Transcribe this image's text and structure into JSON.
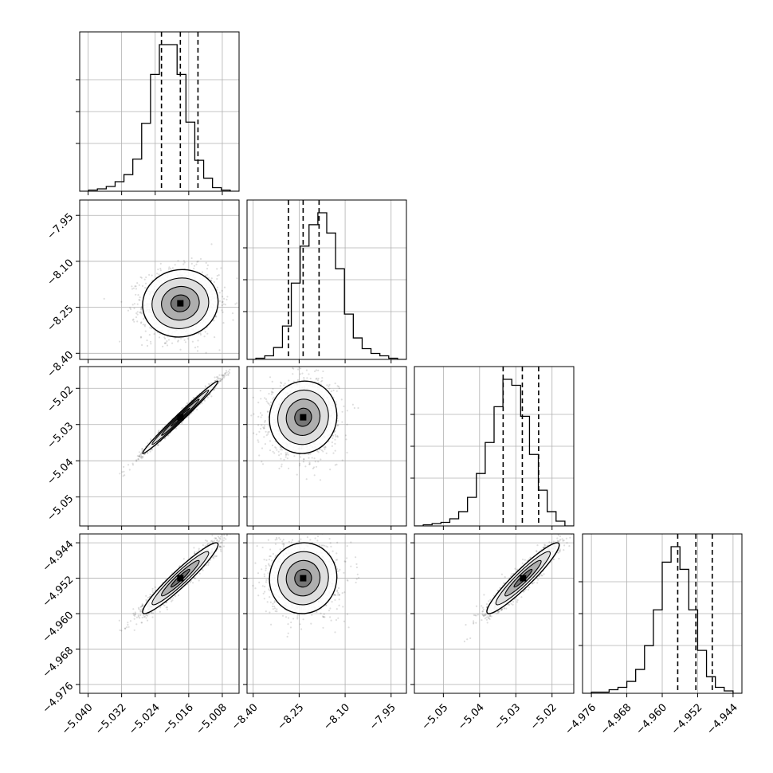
{
  "chart_data": {
    "type": "corner",
    "parameters": [
      {
        "range": [
          -5.042,
          -5.004
        ],
        "ticks": [
          -5.04,
          -5.032,
          -5.024,
          -5.016,
          -5.008
        ],
        "tick_labels": [
          "−5.040",
          "−5.032",
          "−5.024",
          "−5.016",
          "−5.008"
        ],
        "quantiles": [
          -5.0225,
          -5.018,
          -5.0138
        ],
        "hist_counts": [
          0,
          1,
          2,
          4,
          8,
          14,
          27,
          57,
          98,
          123,
          123,
          98,
          58,
          26,
          11,
          3,
          1,
          0
        ]
      },
      {
        "range": [
          -8.42,
          -7.9
        ],
        "ticks": [
          -8.4,
          -8.25,
          -8.1,
          -7.95
        ],
        "tick_labels": [
          "−8.40",
          "−8.25",
          "−8.10",
          "−7.95"
        ],
        "quantiles": [
          -8.285,
          -8.237,
          -8.185
        ],
        "hist_counts": [
          0,
          1,
          3,
          10,
          28,
          64,
          95,
          113,
          123,
          106,
          76,
          38,
          18,
          9,
          5,
          3,
          1,
          0
        ]
      },
      {
        "range": [
          -5.058,
          -5.014
        ],
        "ticks": [
          -5.05,
          -5.04,
          -5.03,
          -5.02
        ],
        "tick_labels": [
          "−5.05",
          "−5.04",
          "−5.03",
          "−5.02"
        ],
        "quantiles": [
          -5.0335,
          -5.0282,
          -5.0237
        ],
        "hist_counts": [
          0,
          1,
          2,
          3,
          6,
          12,
          24,
          44,
          70,
          100,
          123,
          118,
          92,
          60,
          30,
          12,
          4,
          0
        ]
      },
      {
        "range": [
          -4.978,
          -4.942
        ],
        "ticks": [
          -4.976,
          -4.968,
          -4.96,
          -4.952,
          -4.944
        ],
        "tick_labels": [
          "−4.976",
          "−4.968",
          "−4.960",
          "−4.952",
          "−4.944"
        ],
        "quantiles": [
          -4.9565,
          -4.9524,
          -4.9487
        ],
        "hist_counts": [
          0,
          1,
          1,
          3,
          5,
          10,
          20,
          40,
          70,
          110,
          123,
          104,
          70,
          36,
          14,
          5,
          2,
          0
        ]
      }
    ],
    "means": [
      -5.018,
      -8.237,
      -5.028,
      -4.952
    ],
    "sigmas": [
      0.0045,
      0.055,
      0.005,
      0.004
    ],
    "correlations": {
      "1-0": 0.05,
      "2-0": 0.99,
      "2-1": 0.05,
      "3-0": 0.95,
      "3-1": 0.03,
      "3-2": 0.94
    },
    "grid": true
  }
}
